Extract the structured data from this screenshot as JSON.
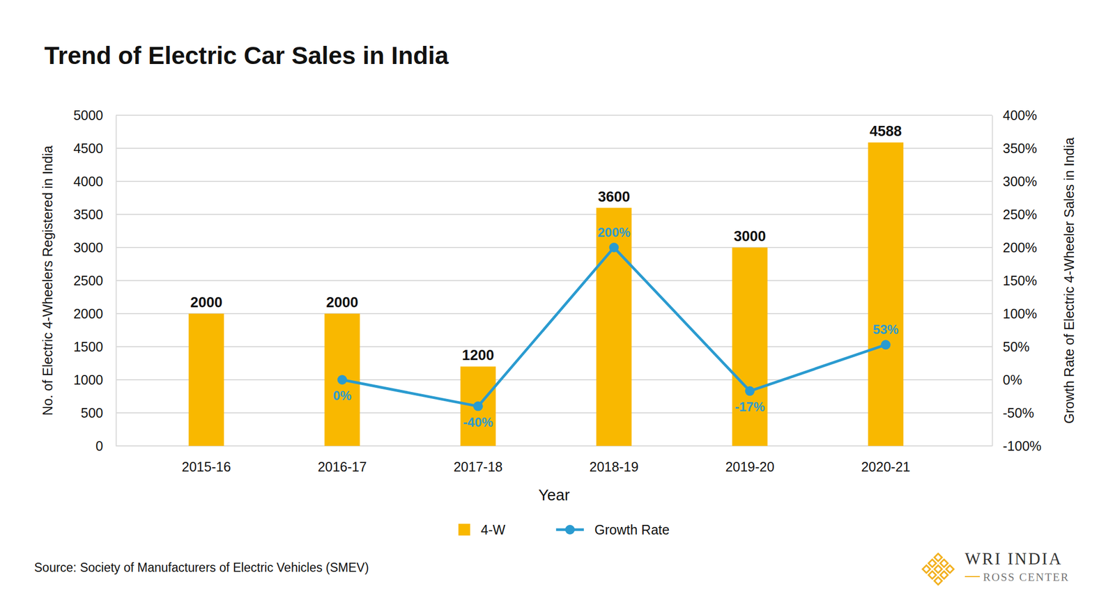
{
  "chart_data": {
    "type": "bar",
    "title": "Trend of Electric Car Sales in India",
    "x_label": "Year",
    "y_label": "No. of Electric 4-Wheelers Registered in India",
    "y2_label": "Growth Rate of Electric 4-Wheeler Sales in India",
    "categories": [
      "2015-16",
      "2016-17",
      "2017-18",
      "2018-19",
      "2019-20",
      "2020-21"
    ],
    "series": [
      {
        "name": "4-W",
        "type": "bar",
        "color": "#f9b800",
        "values": [
          2000,
          2000,
          1200,
          3600,
          3000,
          4588
        ]
      },
      {
        "name": "Growth Rate",
        "type": "line",
        "axis": "y2",
        "color": "#2a9bd0",
        "marker": "circle",
        "values": [
          null,
          0,
          -40,
          200,
          -17,
          53
        ],
        "value_labels": [
          null,
          "0%",
          "-40%",
          "200%",
          "-17%",
          "53%"
        ]
      }
    ],
    "ylim": [
      0,
      5000
    ],
    "yticks": [
      0,
      500,
      1000,
      1500,
      2000,
      2500,
      3000,
      3500,
      4000,
      4500,
      5000
    ],
    "y2lim": [
      -100,
      400
    ],
    "y2ticks": [
      {
        "value": -100,
        "label": "-100%"
      },
      {
        "value": -50,
        "label": "-50%"
      },
      {
        "value": 0,
        "label": "0%"
      },
      {
        "value": 50,
        "label": "50%"
      },
      {
        "value": 100,
        "label": "100%"
      },
      {
        "value": 150,
        "label": "150%"
      },
      {
        "value": 200,
        "label": "200%"
      },
      {
        "value": 250,
        "label": "250%"
      },
      {
        "value": 300,
        "label": "300%"
      },
      {
        "value": 350,
        "label": "350%"
      },
      {
        "value": 400,
        "label": "400%"
      }
    ],
    "grid": true,
    "data_labels": true,
    "legend": "bottom",
    "source": "Source: Society of Manufacturers of Electric Vehicles (SMEV)",
    "logo": {
      "name": "WRI INDIA",
      "center": "ROSS CENTER"
    }
  }
}
